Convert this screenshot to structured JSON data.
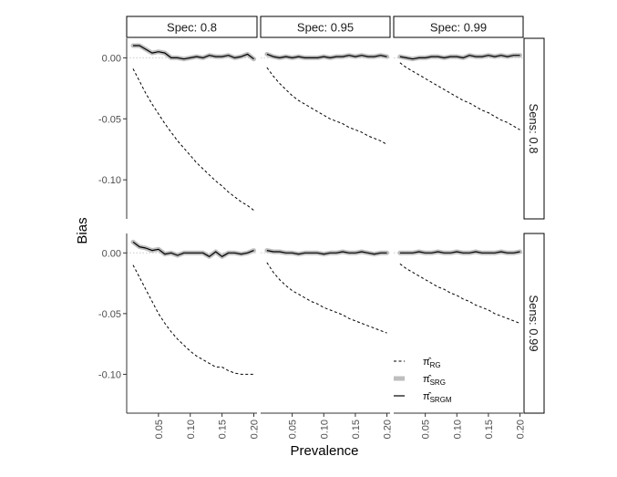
{
  "chart_data": {
    "type": "line",
    "xlabel": "Prevalence",
    "ylabel": "Bias",
    "col_strips": [
      "Spec: 0.8",
      "Spec: 0.95",
      "Spec: 0.99"
    ],
    "row_strips": [
      "Sens: 0.8",
      "Sens: 0.99"
    ],
    "x": [
      0.01,
      0.02,
      0.03,
      0.04,
      0.05,
      0.06,
      0.07,
      0.08,
      0.09,
      0.1,
      0.11,
      0.12,
      0.13,
      0.14,
      0.15,
      0.16,
      0.17,
      0.18,
      0.19,
      0.2
    ],
    "x_ticks": [
      0.05,
      0.1,
      0.15,
      0.2
    ],
    "x_tick_labels": [
      "0.05",
      "0.10",
      "0.15",
      "0.20"
    ],
    "xlim": [
      0.0,
      0.205
    ],
    "rows": [
      {
        "ylim": [
          -0.132,
          0.016
        ],
        "y_ticks": [
          0.0,
          -0.05,
          -0.1
        ],
        "y_tick_labels": [
          "0.00",
          "-0.05",
          "-0.10"
        ]
      },
      {
        "ylim": [
          -0.132,
          0.016
        ],
        "y_ticks": [
          0.0,
          -0.05,
          -0.1
        ],
        "y_tick_labels": [
          "0.00",
          "-0.05",
          "-0.10"
        ]
      }
    ],
    "legend": {
      "position": "bottom-right inside",
      "entries": [
        {
          "symbol": "π̂",
          "sub": "RG",
          "style": "dashed"
        },
        {
          "symbol": "π̂",
          "sub": "SRG",
          "style": "thick-grey"
        },
        {
          "symbol": "π̂",
          "sub": "SRGM",
          "style": "solid"
        }
      ]
    },
    "panels": [
      {
        "row": 0,
        "col": 0,
        "RG": [
          -0.009,
          -0.019,
          -0.029,
          -0.038,
          -0.046,
          -0.054,
          -0.061,
          -0.068,
          -0.074,
          -0.08,
          -0.086,
          -0.091,
          -0.096,
          -0.101,
          -0.105,
          -0.11,
          -0.114,
          -0.118,
          -0.121,
          -0.125
        ],
        "SRG": [
          0.01,
          0.01,
          0.007,
          0.004,
          0.005,
          0.004,
          0.0,
          0.0,
          -0.001,
          0.0,
          0.001,
          0.0,
          0.002,
          0.001,
          0.001,
          0.002,
          0.0,
          0.001,
          0.003,
          -0.001
        ],
        "SRGM": [
          0.01,
          0.01,
          0.007,
          0.004,
          0.005,
          0.004,
          0.0,
          0.0,
          -0.001,
          0.0,
          0.001,
          0.0,
          0.002,
          0.001,
          0.001,
          0.002,
          0.0,
          0.001,
          0.003,
          -0.001
        ]
      },
      {
        "row": 0,
        "col": 1,
        "RG": [
          -0.008,
          -0.015,
          -0.021,
          -0.026,
          -0.031,
          -0.035,
          -0.038,
          -0.041,
          -0.044,
          -0.047,
          -0.05,
          -0.052,
          -0.054,
          -0.057,
          -0.059,
          -0.061,
          -0.064,
          -0.066,
          -0.068,
          -0.071
        ],
        "SRG": [
          0.003,
          0.001,
          0.0,
          0.001,
          0.0,
          0.001,
          0.0,
          0.0,
          0.0,
          0.001,
          0.0,
          0.001,
          0.001,
          0.002,
          0.001,
          0.002,
          0.001,
          0.001,
          0.002,
          0.001
        ],
        "SRGM": [
          0.003,
          0.001,
          0.0,
          0.001,
          0.0,
          0.001,
          0.0,
          0.0,
          0.0,
          0.001,
          0.0,
          0.001,
          0.001,
          0.002,
          0.001,
          0.002,
          0.001,
          0.001,
          0.002,
          0.001
        ]
      },
      {
        "row": 0,
        "col": 2,
        "RG": [
          -0.004,
          -0.008,
          -0.011,
          -0.014,
          -0.017,
          -0.02,
          -0.023,
          -0.026,
          -0.029,
          -0.032,
          -0.035,
          -0.037,
          -0.04,
          -0.043,
          -0.045,
          -0.048,
          -0.051,
          -0.053,
          -0.056,
          -0.059
        ],
        "SRG": [
          0.001,
          0.0,
          -0.001,
          0.0,
          0.0,
          0.001,
          0.001,
          0.0,
          0.001,
          0.001,
          0.0,
          0.002,
          0.001,
          0.001,
          0.002,
          0.001,
          0.002,
          0.001,
          0.002,
          0.002
        ],
        "SRGM": [
          0.001,
          0.0,
          -0.001,
          0.0,
          0.0,
          0.001,
          0.001,
          0.0,
          0.001,
          0.001,
          0.0,
          0.002,
          0.001,
          0.001,
          0.002,
          0.001,
          0.002,
          0.001,
          0.002,
          0.002
        ]
      },
      {
        "row": 1,
        "col": 0,
        "RG": [
          -0.01,
          -0.02,
          -0.03,
          -0.04,
          -0.05,
          -0.058,
          -0.065,
          -0.071,
          -0.076,
          -0.081,
          -0.085,
          -0.088,
          -0.091,
          -0.094,
          -0.094,
          -0.097,
          -0.099,
          -0.1,
          -0.1,
          -0.1
        ],
        "SRG": [
          0.009,
          0.005,
          0.004,
          0.002,
          0.003,
          -0.001,
          0.0,
          -0.002,
          0.0,
          0.0,
          0.0,
          0.0,
          -0.003,
          0.001,
          -0.003,
          0.0,
          0.0,
          -0.001,
          0.0,
          0.002
        ],
        "SRGM": [
          0.009,
          0.005,
          0.004,
          0.002,
          0.003,
          -0.001,
          0.0,
          -0.002,
          0.0,
          0.0,
          0.0,
          0.0,
          -0.003,
          0.001,
          -0.003,
          0.0,
          0.0,
          -0.001,
          0.0,
          0.002
        ]
      },
      {
        "row": 1,
        "col": 1,
        "RG": [
          -0.008,
          -0.016,
          -0.022,
          -0.027,
          -0.031,
          -0.034,
          -0.037,
          -0.04,
          -0.042,
          -0.045,
          -0.047,
          -0.049,
          -0.051,
          -0.054,
          -0.056,
          -0.058,
          -0.06,
          -0.062,
          -0.064,
          -0.066
        ],
        "SRG": [
          0.002,
          0.001,
          0.001,
          0.0,
          0.0,
          -0.001,
          0.0,
          0.0,
          0.0,
          -0.001,
          0.0,
          0.0,
          0.001,
          0.0,
          0.0,
          0.001,
          0.0,
          -0.001,
          0.0,
          0.0
        ],
        "SRGM": [
          0.002,
          0.001,
          0.001,
          0.0,
          0.0,
          -0.001,
          0.0,
          0.0,
          0.0,
          -0.001,
          0.0,
          0.0,
          0.001,
          0.0,
          0.0,
          0.001,
          0.0,
          -0.001,
          0.0,
          0.0
        ]
      },
      {
        "row": 1,
        "col": 2,
        "RG": [
          -0.009,
          -0.013,
          -0.016,
          -0.019,
          -0.022,
          -0.025,
          -0.028,
          -0.03,
          -0.033,
          -0.035,
          -0.038,
          -0.04,
          -0.043,
          -0.045,
          -0.047,
          -0.05,
          -0.052,
          -0.054,
          -0.056,
          -0.058
        ],
        "SRG": [
          0.0,
          0.0,
          0.0,
          0.001,
          0.0,
          0.0,
          0.001,
          0.0,
          0.0,
          0.001,
          0.0,
          0.0,
          0.001,
          0.0,
          0.0,
          0.0,
          0.001,
          0.0,
          0.0,
          0.001
        ],
        "SRGM": [
          0.0,
          0.0,
          0.0,
          0.001,
          0.0,
          0.0,
          0.001,
          0.0,
          0.0,
          0.001,
          0.0,
          0.0,
          0.001,
          0.0,
          0.0,
          0.0,
          0.001,
          0.0,
          0.0,
          0.001
        ]
      }
    ],
    "colors": {
      "RG": "#000000",
      "SRG": "#bebebe",
      "SRGM": "#000000",
      "zero_line": "#cccccc",
      "strip_fill": "#ffffff",
      "strip_border": "#000000"
    }
  }
}
